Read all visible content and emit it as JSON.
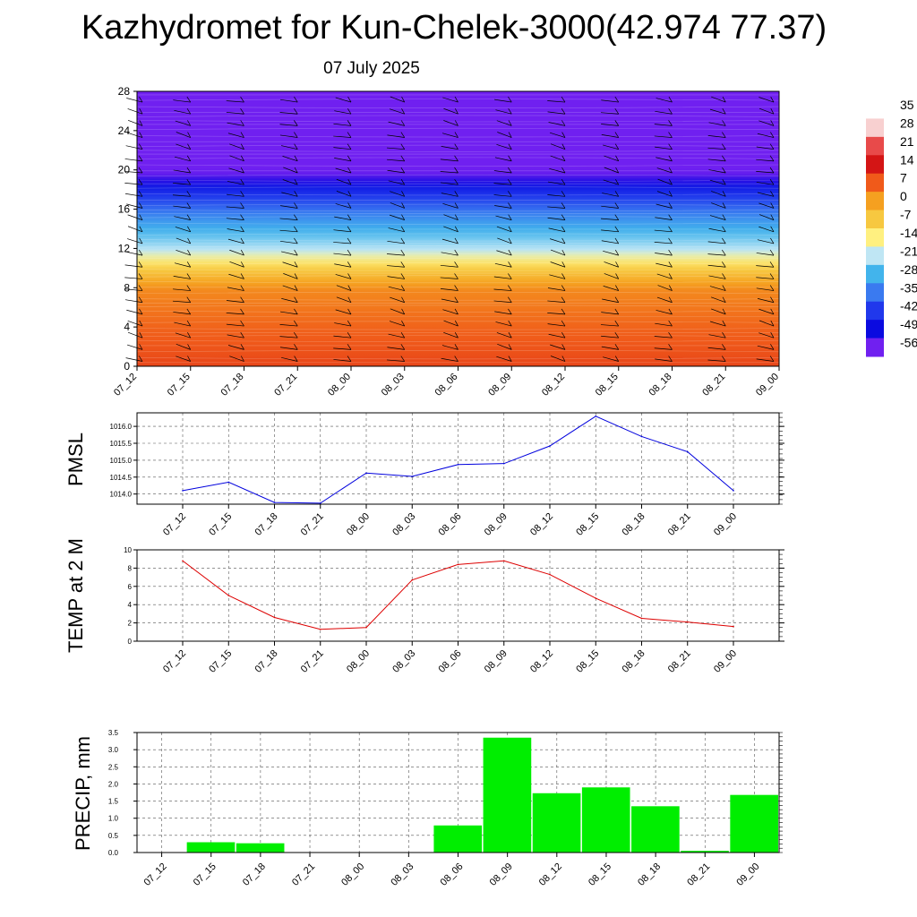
{
  "title": "Kazhydromet for Kun-Chelek-3000(42.974 77.37)",
  "subtitle": "07 July 2025",
  "time_labels": [
    "07_12",
    "07_15",
    "07_18",
    "07_21",
    "08_00",
    "08_03",
    "08_06",
    "08_09",
    "08_12",
    "08_15",
    "08_18",
    "08_21",
    "09_00"
  ],
  "chart_data": [
    {
      "type": "heatmap",
      "y_ticks": [
        0,
        4,
        8,
        12,
        16,
        20,
        24,
        28
      ],
      "ylim": [
        0,
        28
      ],
      "x": [
        "07_12",
        "07_15",
        "07_18",
        "07_21",
        "08_00",
        "08_03",
        "08_06",
        "08_09",
        "08_12",
        "08_15",
        "08_18",
        "08_21",
        "09_00"
      ],
      "colorbar": {
        "labels": [
          "35",
          "28",
          "21",
          "14",
          "7",
          "0",
          "-7",
          "-14",
          "-21",
          "-28",
          "-35",
          "-42",
          "-49",
          "-56"
        ],
        "colors": [
          "#ffffff",
          "#f8d0d0",
          "#e84a4a",
          "#d41515",
          "#f05a1a",
          "#f5a020",
          "#f7c840",
          "#fff080",
          "#bfe6f4",
          "#42b4ec",
          "#3a7af0",
          "#2038ec",
          "#0a0ae0",
          "#7020f0"
        ]
      },
      "temperature_profile": [
        {
          "height": 0,
          "temp": 9
        },
        {
          "height": 4,
          "temp": 6
        },
        {
          "height": 8,
          "temp": 2
        },
        {
          "height": 10,
          "temp": -8
        },
        {
          "height": 12,
          "temp": -22
        },
        {
          "height": 15,
          "temp": -32
        },
        {
          "height": 18,
          "temp": -45
        },
        {
          "height": 19.5,
          "temp": -55
        },
        {
          "height": 21,
          "temp": -58
        },
        {
          "height": 28,
          "temp": -58
        }
      ],
      "wind_barbs": true
    },
    {
      "type": "line",
      "ylabel": "PMSL",
      "x": [
        "07_12",
        "07_15",
        "07_18",
        "07_21",
        "08_00",
        "08_03",
        "08_06",
        "08_09",
        "08_12",
        "08_15",
        "08_18",
        "08_21",
        "09_00"
      ],
      "values": [
        1014.1,
        1014.35,
        1013.75,
        1013.73,
        1014.62,
        1014.52,
        1014.87,
        1014.9,
        1015.42,
        1016.3,
        1015.7,
        1015.25,
        1014.1
      ],
      "y_ticks": [
        "1014.0",
        "1014.5",
        "1015.0",
        "1015.5",
        "1016.0"
      ],
      "ylim": [
        1013.7,
        1016.4
      ],
      "color": "#0000dd"
    },
    {
      "type": "line",
      "ylabel": "TEMP at 2 M",
      "x": [
        "07_12",
        "07_15",
        "07_18",
        "07_21",
        "08_00",
        "08_03",
        "08_06",
        "08_09",
        "08_12",
        "08_15",
        "08_18",
        "08_21",
        "09_00"
      ],
      "values": [
        8.8,
        5.0,
        2.6,
        1.3,
        1.5,
        6.7,
        8.4,
        8.8,
        7.3,
        4.7,
        2.5,
        2.1,
        1.6
      ],
      "y_ticks": [
        "0",
        "2",
        "4",
        "6",
        "8",
        "10"
      ],
      "ylim": [
        0,
        10
      ],
      "color": "#dd0000"
    },
    {
      "type": "bar",
      "ylabel": "PRECIP, mm",
      "categories": [
        "07_12",
        "07_15",
        "07_18",
        "07_21",
        "08_00",
        "08_03",
        "08_06",
        "08_09",
        "08_12",
        "08_15",
        "08_18",
        "08_21",
        "09_00"
      ],
      "values": [
        0,
        0.3,
        0.27,
        0,
        0,
        0,
        0.79,
        3.35,
        1.73,
        1.9,
        1.35,
        0.05,
        1.68
      ],
      "y_ticks": [
        "0.0",
        "0.5",
        "1.0",
        "1.5",
        "2.0",
        "2.5",
        "3.0",
        "3.5"
      ],
      "ylim": [
        0,
        3.5
      ],
      "color": "#00ee00"
    }
  ]
}
